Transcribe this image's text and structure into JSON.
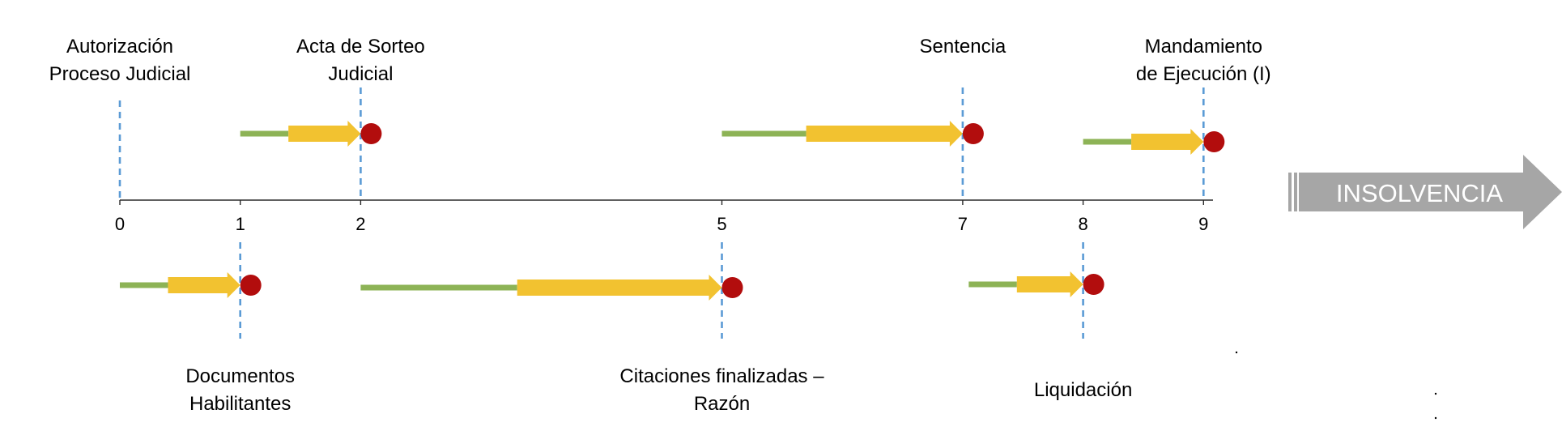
{
  "colors": {
    "axis": "#2b2b2b",
    "dashed_marker": "#5b9bd5",
    "green_segment": "#8db356",
    "yellow_arrow": "#f2c230",
    "red_dot": "#b20d0d",
    "insolvencia_arrow": "#a6a6a6",
    "insolvencia_text": "#ffffff"
  },
  "axis": {
    "ticks": [
      {
        "value": 0,
        "label": "0"
      },
      {
        "value": 1,
        "label": "1"
      },
      {
        "value": 2,
        "label": "2"
      },
      {
        "value": 5,
        "label": "5"
      },
      {
        "value": 7,
        "label": "7"
      },
      {
        "value": 8,
        "label": "8"
      },
      {
        "value": 9,
        "label": "9"
      }
    ]
  },
  "milestones": [
    {
      "id": "autorizacion",
      "position": 0,
      "side": "top",
      "lines": [
        "Autorización",
        "Proceso Judicial"
      ]
    },
    {
      "id": "acta-sorteo",
      "position": 2,
      "side": "top",
      "lines": [
        "Acta de Sorteo",
        "Judicial"
      ]
    },
    {
      "id": "sentencia",
      "position": 7,
      "side": "top",
      "lines": [
        "Sentencia"
      ]
    },
    {
      "id": "mandamiento",
      "position": 9,
      "side": "top",
      "lines": [
        "Mandamiento",
        "de Ejecución (I)"
      ]
    },
    {
      "id": "documentos",
      "position": 1,
      "side": "bottom",
      "lines": [
        "Documentos",
        "Habilitantes"
      ]
    },
    {
      "id": "citaciones",
      "position": 5,
      "side": "bottom",
      "lines": [
        "Citaciones finalizadas –",
        "Razón"
      ]
    },
    {
      "id": "liquidacion",
      "position": 8,
      "side": "bottom",
      "lines": [
        "Liquidación"
      ]
    }
  ],
  "phases": [
    {
      "id": "to-acta",
      "side": "top",
      "start": 1.0,
      "yellow_start": 1.4,
      "end": 2.0
    },
    {
      "id": "to-sentencia",
      "side": "top",
      "start": 5.0,
      "yellow_start": 5.7,
      "end": 7.0
    },
    {
      "id": "to-mandamiento",
      "side": "top",
      "start": 8.0,
      "yellow_start": 8.4,
      "end": 9.0
    },
    {
      "id": "to-documentos",
      "side": "bottom",
      "start": 0.0,
      "yellow_start": 0.4,
      "end": 1.0
    },
    {
      "id": "to-citaciones",
      "side": "bottom",
      "start": 2.0,
      "yellow_start": 3.3,
      "end": 5.0
    },
    {
      "id": "to-liquidacion",
      "side": "bottom",
      "start": 7.05,
      "yellow_start": 7.45,
      "end": 8.0
    }
  ],
  "insolvencia": {
    "label": "INSOLVENCIA"
  }
}
